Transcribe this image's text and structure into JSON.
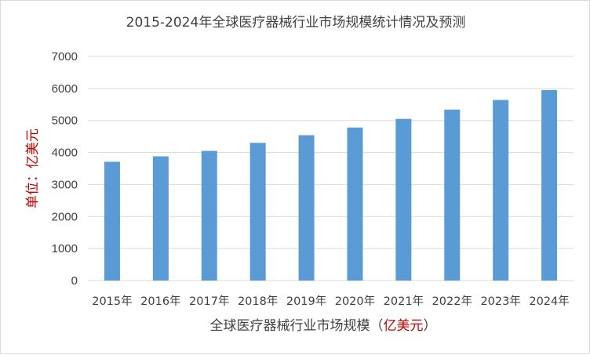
{
  "chart_data": {
    "type": "bar",
    "title": "2015-2024年全球医疗器械行业市场规模统计情况及预测",
    "categories": [
      "2015年",
      "2016年",
      "2017年",
      "2018年",
      "2019年",
      "2020年",
      "2021年",
      "2022年",
      "2023年",
      "2024年"
    ],
    "series": [
      {
        "values": [
          3710,
          3880,
          4050,
          4300,
          4540,
          4780,
          5050,
          5340,
          5640,
          5950
        ]
      }
    ],
    "ylim": [
      0,
      7000
    ],
    "yticks": [
      0,
      1000,
      2000,
      3000,
      4000,
      5000,
      6000,
      7000
    ],
    "xlabel": {
      "prefix": "全球医疗器械行业市场规模",
      "open_paren": "（",
      "unit": "亿美元",
      "close_paren": "）"
    },
    "ylabel": {
      "prefix": "单位：",
      "unit": "亿美元"
    },
    "grid": true,
    "legend": "none",
    "colors": {
      "bar": "#5b9bd5",
      "grid": "#d9d9d9",
      "text": "#404040",
      "unit": "#c00000"
    }
  }
}
